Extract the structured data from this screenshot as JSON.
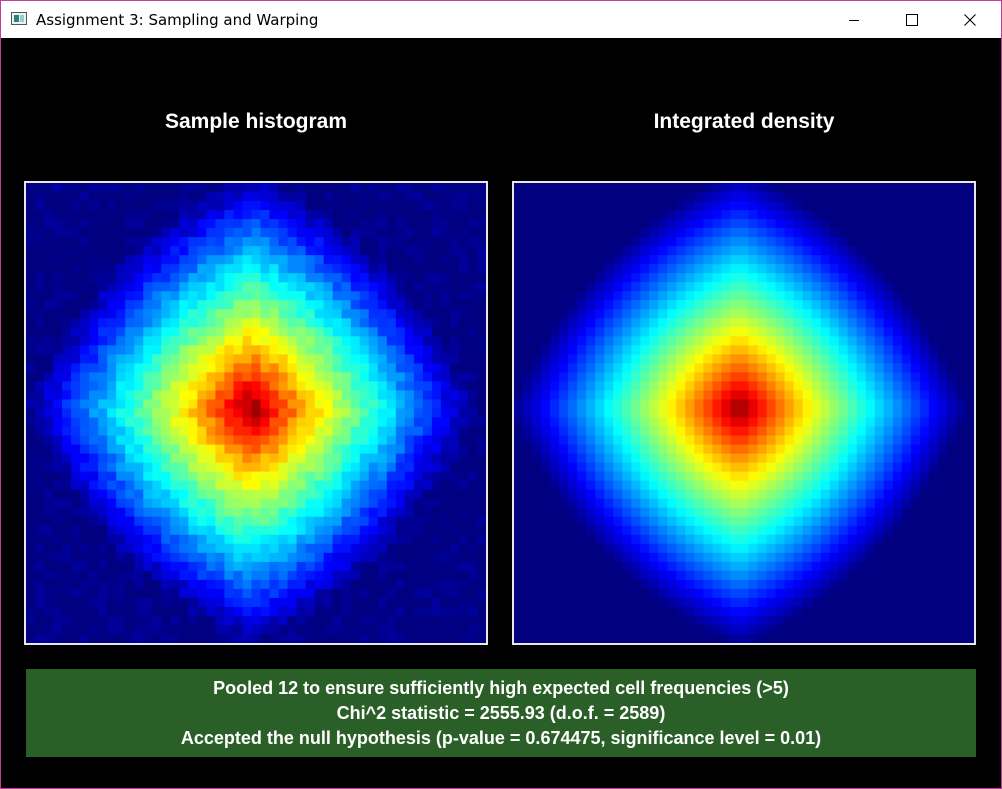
{
  "window": {
    "title": "Assignment 3: Sampling and Warping",
    "icon": "app-window-icon",
    "controls": [
      "minimize-icon",
      "maximize-icon",
      "close-icon"
    ]
  },
  "panels": {
    "left_title": "Sample histogram",
    "right_title": "Integrated density"
  },
  "heatmaps": {
    "grid": 51,
    "colormap": "jet (blue → cyan → green → yellow → red)",
    "left_noise": 0.06,
    "right_noise": 0.0
  },
  "results": {
    "line1": "Pooled 12 to ensure sufficiently high expected cell frequencies (>5)",
    "line2": "Chi^2 statistic = 2555.93 (d.o.f. = 2589)",
    "line3": "Accepted the null hypothesis (p-value = 0.674475, significance level = 0.01)"
  },
  "colors": {
    "window_border": "#c23ca0",
    "background": "#000000",
    "result_box": "#2a5f28",
    "plot_border": "#e8e8e8"
  }
}
